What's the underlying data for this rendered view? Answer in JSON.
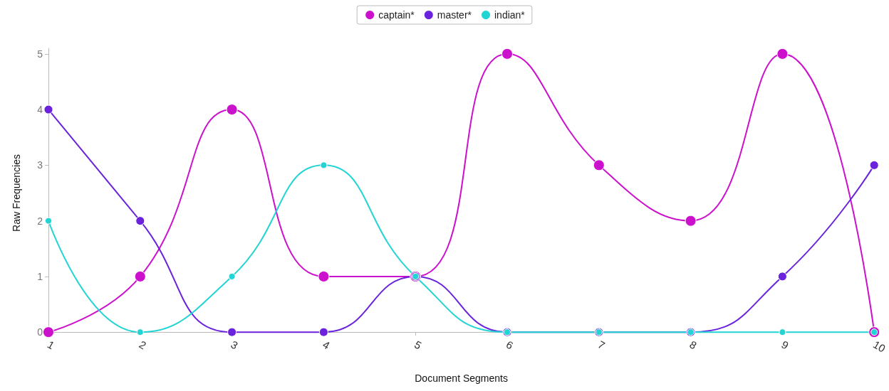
{
  "chart_data": {
    "type": "line",
    "xlabel": "Document Segments",
    "ylabel": "Raw Frequencies",
    "categories": [
      "1",
      "2",
      "3",
      "4",
      "5",
      "6",
      "7",
      "8",
      "9",
      "10"
    ],
    "series": [
      {
        "name": "captain*",
        "color": "#cc11cc",
        "values": [
          0,
          1,
          4,
          1,
          1,
          5,
          3,
          2,
          5,
          0
        ]
      },
      {
        "name": "master*",
        "color": "#6a22dd",
        "values": [
          4,
          2,
          0,
          0,
          1,
          0,
          0,
          0,
          1,
          3
        ]
      },
      {
        "name": "indian*",
        "color": "#22d4d4",
        "values": [
          2,
          0,
          1,
          3,
          1,
          0,
          0,
          0,
          0,
          0
        ]
      }
    ],
    "ylim": [
      -0.1,
      5.1
    ],
    "yticks": [
      0,
      1,
      2,
      3,
      4,
      5
    ],
    "grid": false,
    "legend": "top",
    "marker": "circle",
    "line_style": "solid"
  }
}
